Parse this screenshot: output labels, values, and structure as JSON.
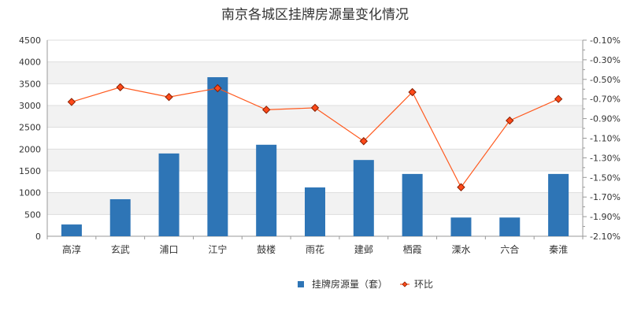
{
  "chart_data": {
    "type": "bar",
    "title": "南京各城区挂牌房源量变化情况",
    "categories": [
      "高淳",
      "玄武",
      "浦口",
      "江宁",
      "鼓楼",
      "雨花",
      "建邺",
      "栖霞",
      "溧水",
      "六合",
      "秦淮"
    ],
    "series": [
      {
        "name": "挂牌房源量（套）",
        "type": "bar",
        "axis": "left",
        "color": "#2e75b6",
        "values": [
          270,
          850,
          1900,
          3650,
          2100,
          1120,
          1750,
          1430,
          430,
          430,
          1430
        ]
      },
      {
        "name": "环比",
        "type": "line",
        "axis": "right",
        "color": "#ff5a1f",
        "values": [
          -0.73,
          -0.58,
          -0.68,
          -0.59,
          -0.81,
          -0.79,
          -1.13,
          -0.63,
          -1.6,
          -0.92,
          -0.7
        ]
      }
    ],
    "ylim": [
      0,
      4500
    ],
    "y_ticks": [
      0,
      500,
      1000,
      1500,
      2000,
      2500,
      3000,
      3500,
      4000,
      4500
    ],
    "y2lim": [
      -2.1,
      -0.1
    ],
    "y2_ticks": [
      -2.1,
      -1.9,
      -1.7,
      -1.5,
      -1.3,
      -1.1,
      -0.9,
      -0.7,
      -0.5,
      -0.3,
      -0.1
    ],
    "y2_tick_labels": [
      "-2.10%",
      "-1.90%",
      "-1.70%",
      "-1.50%",
      "-1.30%",
      "-1.10%",
      "-0.90%",
      "-0.70%",
      "-0.50%",
      "-0.30%",
      "-0.10%"
    ],
    "grid": true,
    "legend_position": "bottom"
  }
}
